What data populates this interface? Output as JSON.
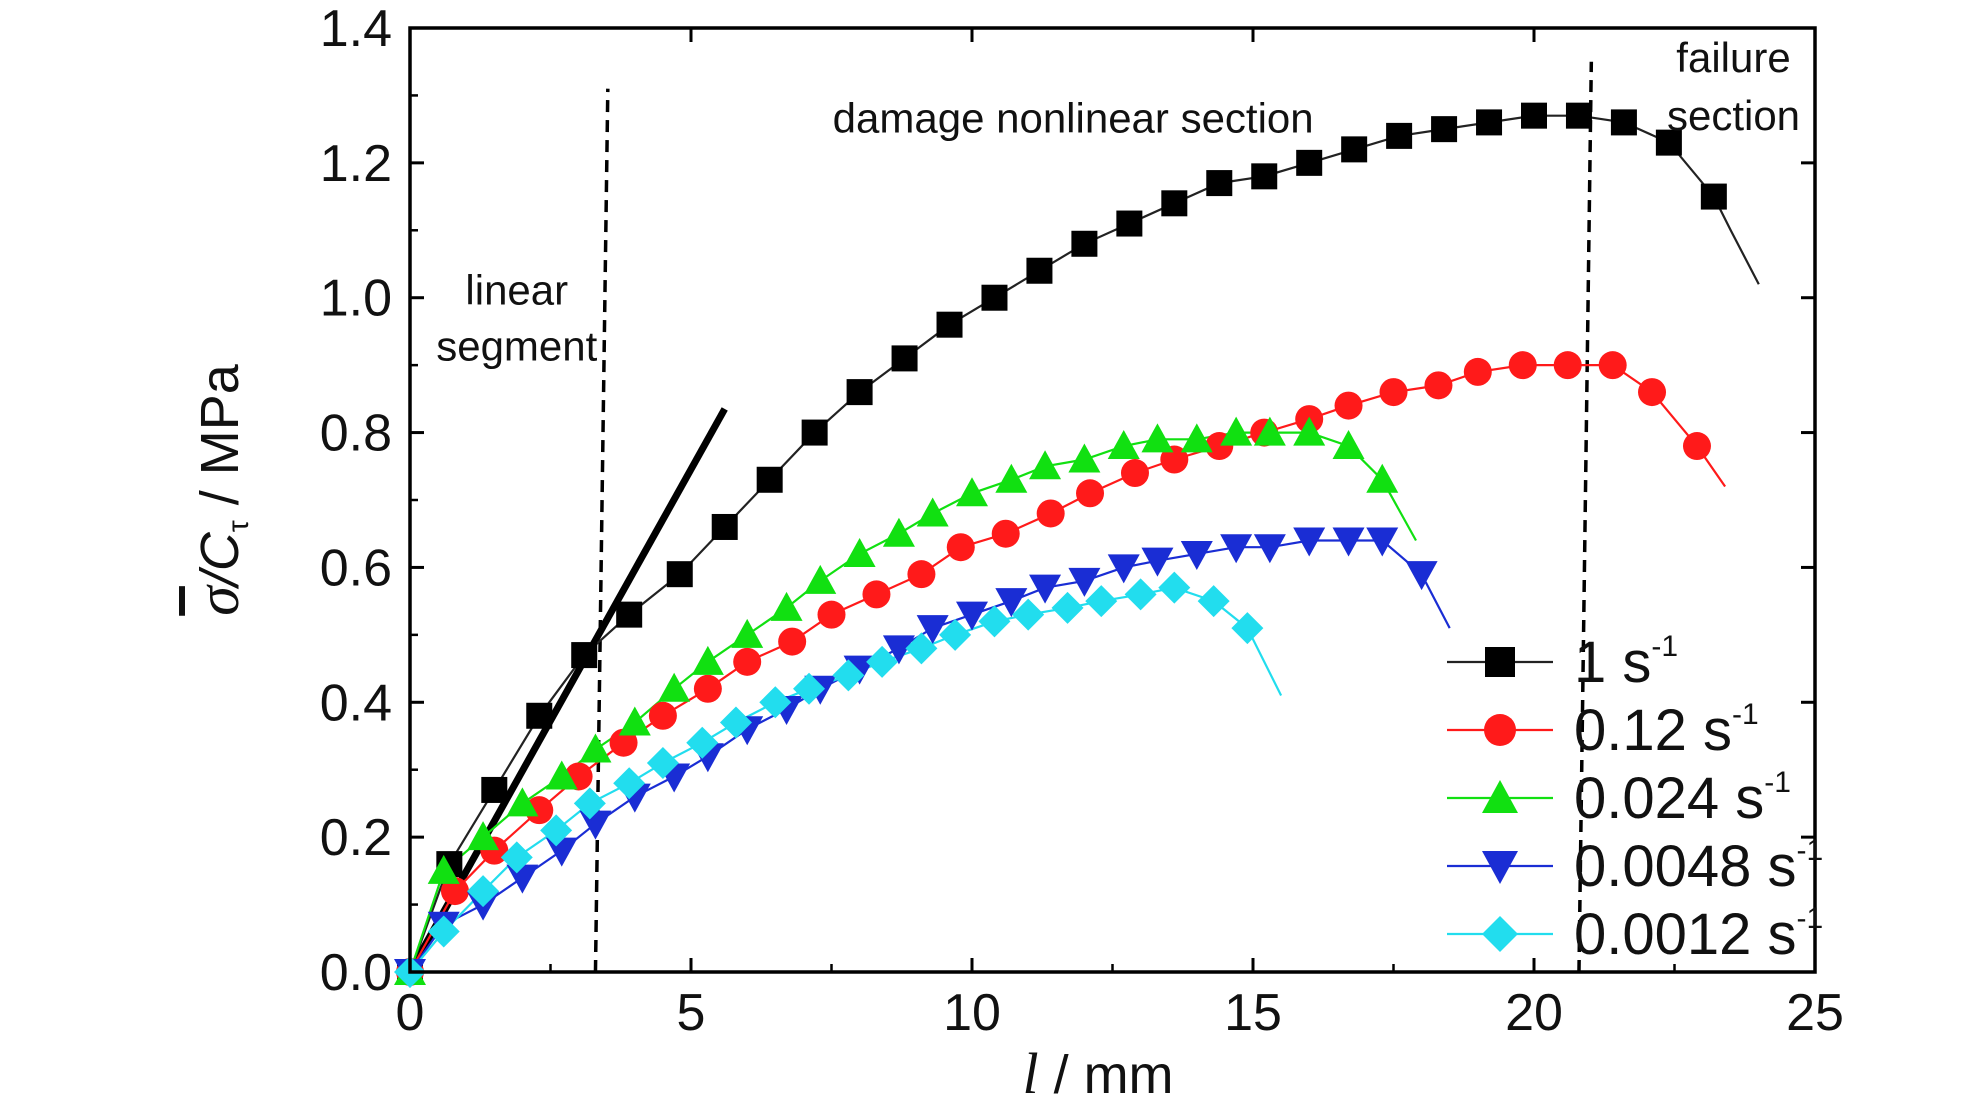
{
  "chart_data": {
    "type": "line",
    "xlabel_var": "l",
    "xlabel_unit": " / mm",
    "ylabel_sym": "σ",
    "ylabel_mid": "/C",
    "ylabel_sub": "τ",
    "ylabel_unit": " / MPa",
    "xlim": [
      0,
      25
    ],
    "ylim": [
      0,
      1.4
    ],
    "xticks": [
      0,
      5,
      10,
      15,
      20,
      25
    ],
    "yticks": [
      "0.0",
      "0.2",
      "0.4",
      "0.6",
      "0.8",
      "1.0",
      "1.2",
      "1.4"
    ],
    "grid": false,
    "legend_position": "bottom-right",
    "annotations": [
      {
        "id": "linear",
        "lines": [
          "linear",
          "segment"
        ]
      },
      {
        "id": "damage",
        "lines": [
          "damage nonlinear section"
        ]
      },
      {
        "id": "failure",
        "lines": [
          "failure",
          "section"
        ]
      }
    ],
    "dividers_x": [
      3.3,
      20.8
    ],
    "linear_fit": {
      "x": [
        0,
        5.6
      ],
      "y": [
        0,
        0.835
      ]
    },
    "series": [
      {
        "name_base": "1 s",
        "name_sup": "-1",
        "color": "#000000",
        "marker": "square",
        "x": [
          0,
          0.7,
          1.5,
          2.3,
          3.1,
          3.9,
          4.8,
          5.6,
          6.4,
          7.2,
          8.0,
          8.8,
          9.6,
          10.4,
          11.2,
          12.0,
          12.8,
          13.6,
          14.4,
          15.2,
          16.0,
          16.8,
          17.6,
          18.4,
          19.2,
          20.0,
          20.8,
          21.6,
          22.4,
          23.2
        ],
        "y": [
          0,
          0.16,
          0.27,
          0.38,
          0.47,
          0.53,
          0.59,
          0.66,
          0.73,
          0.8,
          0.86,
          0.91,
          0.96,
          1.0,
          1.04,
          1.08,
          1.11,
          1.14,
          1.17,
          1.18,
          1.2,
          1.22,
          1.24,
          1.25,
          1.26,
          1.27,
          1.27,
          1.26,
          1.23,
          1.15
        ],
        "tail": {
          "x": [
            23.5,
            24.0
          ],
          "y": [
            1.1,
            1.02
          ]
        }
      },
      {
        "name_base": "0.12 s",
        "name_sup": "-1",
        "color": "#ff1a1a",
        "marker": "circle",
        "x": [
          0,
          0.8,
          1.5,
          2.3,
          3.0,
          3.8,
          4.5,
          5.3,
          6.0,
          6.8,
          7.5,
          8.3,
          9.1,
          9.8,
          10.6,
          11.4,
          12.1,
          12.9,
          13.6,
          14.4,
          15.2,
          16.0,
          16.7,
          17.5,
          18.3,
          19.0,
          19.8,
          20.6,
          21.4,
          22.1,
          22.9
        ],
        "y": [
          0,
          0.12,
          0.18,
          0.24,
          0.29,
          0.34,
          0.38,
          0.42,
          0.46,
          0.49,
          0.53,
          0.56,
          0.59,
          0.63,
          0.65,
          0.68,
          0.71,
          0.74,
          0.76,
          0.78,
          0.8,
          0.82,
          0.84,
          0.86,
          0.87,
          0.89,
          0.9,
          0.9,
          0.9,
          0.86,
          0.78
        ],
        "tail": {
          "x": [
            23.4
          ],
          "y": [
            0.72
          ]
        }
      },
      {
        "name_base": "0.024 s",
        "name_sup": "-1",
        "color": "#11e011",
        "marker": "triangle",
        "x": [
          0,
          0.6,
          1.3,
          2.0,
          2.7,
          3.3,
          4.0,
          4.7,
          5.3,
          6.0,
          6.7,
          7.3,
          8.0,
          8.7,
          9.3,
          10.0,
          10.7,
          11.3,
          12.0,
          12.7,
          13.3,
          14.0,
          14.7,
          15.3,
          16.0,
          16.7,
          17.3
        ],
        "y": [
          0,
          0.15,
          0.2,
          0.25,
          0.29,
          0.33,
          0.37,
          0.42,
          0.46,
          0.5,
          0.54,
          0.58,
          0.62,
          0.65,
          0.68,
          0.71,
          0.73,
          0.75,
          0.76,
          0.78,
          0.79,
          0.79,
          0.8,
          0.8,
          0.8,
          0.78,
          0.73
        ],
        "tail": {
          "x": [
            17.9
          ],
          "y": [
            0.64
          ]
        }
      },
      {
        "name_base": "0.0048 s",
        "name_sup": "-1",
        "color": "#1a2dd4",
        "marker": "triangle-down",
        "x": [
          0,
          0.6,
          1.3,
          2.0,
          2.7,
          3.3,
          4.0,
          4.7,
          5.3,
          6.0,
          6.7,
          7.3,
          8.0,
          8.7,
          9.3,
          10.0,
          10.7,
          11.3,
          12.0,
          12.7,
          13.3,
          14.0,
          14.7,
          15.3,
          16.0,
          16.7,
          17.3,
          18.0
        ],
        "y": [
          0,
          0.07,
          0.1,
          0.14,
          0.18,
          0.22,
          0.26,
          0.29,
          0.32,
          0.36,
          0.39,
          0.42,
          0.45,
          0.48,
          0.51,
          0.53,
          0.55,
          0.57,
          0.58,
          0.6,
          0.61,
          0.62,
          0.63,
          0.63,
          0.64,
          0.64,
          0.64,
          0.59
        ],
        "tail": {
          "x": [
            18.5
          ],
          "y": [
            0.51
          ]
        }
      },
      {
        "name_base": "0.0012 s",
        "name_sup": "-1",
        "color": "#22ddee",
        "marker": "diamond",
        "x": [
          0,
          0.6,
          1.3,
          1.9,
          2.6,
          3.2,
          3.9,
          4.5,
          5.2,
          5.8,
          6.5,
          7.1,
          7.8,
          8.4,
          9.1,
          9.7,
          10.4,
          11.0,
          11.7,
          12.3,
          13.0,
          13.6,
          14.3,
          14.9
        ],
        "y": [
          0,
          0.06,
          0.12,
          0.17,
          0.21,
          0.25,
          0.28,
          0.31,
          0.34,
          0.37,
          0.4,
          0.42,
          0.44,
          0.46,
          0.48,
          0.5,
          0.52,
          0.53,
          0.54,
          0.55,
          0.56,
          0.57,
          0.55,
          0.51
        ],
        "tail": {
          "x": [
            15.5
          ],
          "y": [
            0.41
          ]
        }
      }
    ]
  }
}
